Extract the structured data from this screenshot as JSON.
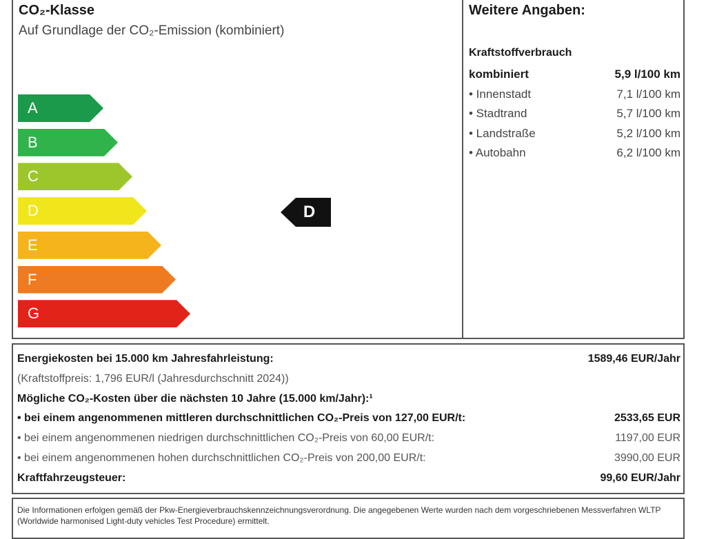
{
  "co2": {
    "title": "CO₂-Klasse",
    "subtitle": "Auf Grundlage der CO₂-Emission (kombiniert)",
    "classes": [
      {
        "label": "A",
        "color": "#1a9a4a"
      },
      {
        "label": "B",
        "color": "#2fb34a"
      },
      {
        "label": "C",
        "color": "#9dc62c"
      },
      {
        "label": "D",
        "color": "#f1e51c"
      },
      {
        "label": "E",
        "color": "#f5b31c"
      },
      {
        "label": "F",
        "color": "#ee7a22"
      },
      {
        "label": "G",
        "color": "#e2231a"
      }
    ],
    "current_class": "D"
  },
  "weitere": {
    "title": "Weitere Angaben:",
    "heading": "Kraftstoffverbrauch",
    "rows": [
      {
        "label": "kombiniert",
        "value": "5,9 l/100 km"
      },
      {
        "label": "• Innenstadt",
        "value": "7,1 l/100 km"
      },
      {
        "label": "• Stadtrand",
        "value": "5,7 l/100 km"
      },
      {
        "label": "• Landstraße",
        "value": "5,2 l/100 km"
      },
      {
        "label": "• Autobahn",
        "value": "6,2 l/100 km"
      }
    ]
  },
  "costs": {
    "rows": [
      {
        "label": "Energiekosten bei 15.000 km Jahresfahrleistung:",
        "value": "1589,46 EUR/Jahr"
      },
      {
        "label": "(Kraftstoffpreis: 1,796 EUR/l (Jahresdurchschnitt 2024))",
        "value": ""
      },
      {
        "label": "Mögliche CO₂-Kosten über die nächsten 10 Jahre (15.000 km/Jahr):¹",
        "value": ""
      },
      {
        "label": "• bei einem angenommenen mittleren durchschnittlichen CO₂-Preis von 127,00 EUR/t:",
        "value": "2533,65 EUR"
      },
      {
        "label": "• bei einem angenommenen niedrigen durchschnittlichen CO₂-Preis von 60,00 EUR/t:",
        "value": "1197,00 EUR"
      },
      {
        "label": "• bei einem angenommenen hohen durchschnittlichen CO₂-Preis von 200,00 EUR/t:",
        "value": "3990,00 EUR"
      },
      {
        "label": "Kraftfahrzeugsteuer:",
        "value": "99,60 EUR/Jahr"
      }
    ]
  },
  "footer": {
    "text": "Die Informationen erfolgen gemäß der Pkw-Energieverbrauchskennzeichnungsverordnung. Die angegebenen Werte wurden nach dem vorgeschriebenen Messverfahren WLTP (Worldwide harmonised Light-duty vehicles Test Procedure) ermittelt."
  }
}
